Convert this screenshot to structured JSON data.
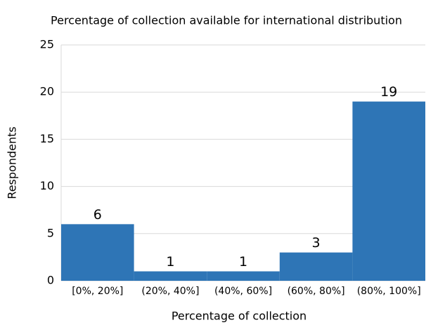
{
  "chart_data": {
    "type": "bar",
    "title": "Percentage of collection available for international distribution",
    "x_label": "Percentage of collection",
    "y_label": "Respondents",
    "categories": [
      "[0%, 20%]",
      "(20%, 40%]",
      "(40%, 60%]",
      "(60%, 80%]",
      "(80%, 100%]"
    ],
    "values": [
      6,
      1,
      1,
      3,
      19
    ],
    "color": "#2e75b6",
    "ylim": [
      0,
      25
    ],
    "yticks": [
      0,
      5,
      10,
      15,
      20,
      25
    ],
    "grid": true
  }
}
